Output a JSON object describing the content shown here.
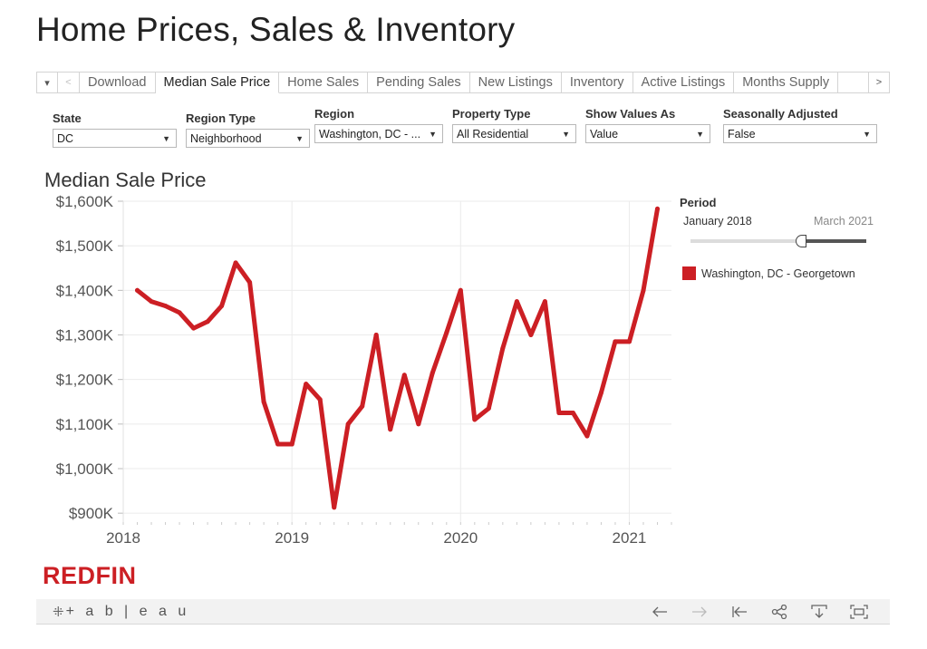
{
  "page": {
    "title": "Home Prices, Sales & Inventory"
  },
  "tabs": {
    "items": [
      "Download",
      "Median Sale Price",
      "Home Sales",
      "Pending Sales",
      "New Listings",
      "Inventory",
      "Active Listings",
      "Months Supply"
    ],
    "active": "Median Sale Price",
    "controls": {
      "menu": "▾",
      "prev": "<",
      "next": ">"
    }
  },
  "filters": {
    "state": {
      "label": "State",
      "value": "DC"
    },
    "region_type": {
      "label": "Region Type",
      "value": "Neighborhood"
    },
    "region": {
      "label": "Region",
      "value": "Washington, DC - ..."
    },
    "property_type": {
      "label": "Property Type",
      "value": "All Residential"
    },
    "show_values_as": {
      "label": "Show Values As",
      "value": "Value"
    },
    "seasonally_adjusted": {
      "label": "Seasonally Adjusted",
      "value": "False"
    }
  },
  "period": {
    "label": "Period",
    "start": "January 2018",
    "end": "March 2021",
    "slider_position": 0.66
  },
  "legend": {
    "item": "Washington, DC - Georgetown",
    "color": "#cc1f24"
  },
  "brand": {
    "logo_text": "REDFIN",
    "color": "#cc1f24"
  },
  "footer": {
    "tableau_text": "+ a b | e a u",
    "tools": [
      "back-arrow-icon",
      "forward-arrow-icon",
      "revert-icon",
      "share-icon",
      "download-icon",
      "fullscreen-icon"
    ]
  },
  "chart_data": {
    "type": "line",
    "title": "Median Sale Price",
    "xlabel": "",
    "ylabel": "",
    "x_ticks": [
      "2018",
      "2019",
      "2020",
      "2021"
    ],
    "y_ticks": [
      "$900K",
      "$1,000K",
      "$1,100K",
      "$1,200K",
      "$1,300K",
      "$1,400K",
      "$1,500K",
      "$1,600K"
    ],
    "ylim": [
      880,
      1600
    ],
    "xlim": [
      "2018-01",
      "2021-04"
    ],
    "grid": true,
    "series": [
      {
        "name": "Washington, DC - Georgetown",
        "color": "#cc1f24",
        "points": [
          {
            "x": "2018-02",
            "y": 1400
          },
          {
            "x": "2018-03",
            "y": 1375
          },
          {
            "x": "2018-04",
            "y": 1365
          },
          {
            "x": "2018-05",
            "y": 1350
          },
          {
            "x": "2018-06",
            "y": 1315
          },
          {
            "x": "2018-07",
            "y": 1330
          },
          {
            "x": "2018-08",
            "y": 1365
          },
          {
            "x": "2018-09",
            "y": 1462
          },
          {
            "x": "2018-10",
            "y": 1418
          },
          {
            "x": "2018-11",
            "y": 1150
          },
          {
            "x": "2018-12",
            "y": 1055
          },
          {
            "x": "2019-01",
            "y": 1055
          },
          {
            "x": "2019-02",
            "y": 1190
          },
          {
            "x": "2019-03",
            "y": 1155
          },
          {
            "x": "2019-04",
            "y": 913
          },
          {
            "x": "2019-05",
            "y": 1100
          },
          {
            "x": "2019-06",
            "y": 1140
          },
          {
            "x": "2019-07",
            "y": 1300
          },
          {
            "x": "2019-08",
            "y": 1088
          },
          {
            "x": "2019-09",
            "y": 1210
          },
          {
            "x": "2019-10",
            "y": 1100
          },
          {
            "x": "2019-11",
            "y": 1215
          },
          {
            "x": "2019-12",
            "y": 1305
          },
          {
            "x": "2020-01",
            "y": 1400
          },
          {
            "x": "2020-02",
            "y": 1110
          },
          {
            "x": "2020-03",
            "y": 1135
          },
          {
            "x": "2020-04",
            "y": 1270
          },
          {
            "x": "2020-05",
            "y": 1375
          },
          {
            "x": "2020-06",
            "y": 1300
          },
          {
            "x": "2020-07",
            "y": 1375
          },
          {
            "x": "2020-08",
            "y": 1125
          },
          {
            "x": "2020-09",
            "y": 1125
          },
          {
            "x": "2020-10",
            "y": 1073
          },
          {
            "x": "2020-11",
            "y": 1170
          },
          {
            "x": "2020-12",
            "y": 1285
          },
          {
            "x": "2021-01",
            "y": 1285
          },
          {
            "x": "2021-02",
            "y": 1400
          },
          {
            "x": "2021-03",
            "y": 1583
          }
        ]
      }
    ]
  }
}
